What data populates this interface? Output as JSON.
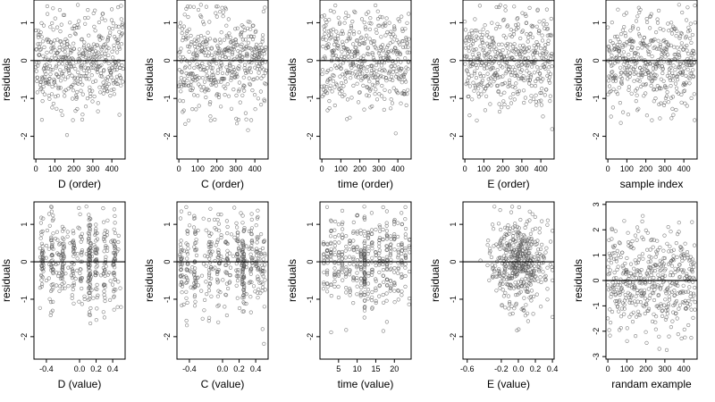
{
  "chart_data": [
    {
      "type": "scatter",
      "xlabel": "D (order)",
      "ylabel": "residuals",
      "xticks": [
        0,
        100,
        200,
        300,
        400
      ],
      "xlim": [
        -10,
        470
      ],
      "yticks": [
        -2,
        -1,
        0,
        1
      ],
      "ylim": [
        -2.6,
        1.6
      ],
      "hline": 0,
      "n_points": 460,
      "seed": 11,
      "x_kind": "order"
    },
    {
      "type": "scatter",
      "xlabel": "C (order)",
      "ylabel": "residuals",
      "xticks": [
        0,
        100,
        200,
        300,
        400
      ],
      "xlim": [
        -10,
        470
      ],
      "yticks": [
        -2,
        -1,
        0,
        1
      ],
      "ylim": [
        -2.6,
        1.6
      ],
      "hline": 0,
      "n_points": 460,
      "seed": 23,
      "x_kind": "order"
    },
    {
      "type": "scatter",
      "xlabel": "time (order)",
      "ylabel": "residuals",
      "xticks": [
        0,
        100,
        200,
        300,
        400
      ],
      "xlim": [
        -10,
        470
      ],
      "yticks": [
        -2,
        -1,
        0,
        1
      ],
      "ylim": [
        -2.6,
        1.6
      ],
      "hline": 0,
      "n_points": 460,
      "seed": 37,
      "x_kind": "order"
    },
    {
      "type": "scatter",
      "xlabel": "E (order)",
      "ylabel": "residuals",
      "xticks": [
        0,
        100,
        200,
        300,
        400
      ],
      "xlim": [
        -10,
        470
      ],
      "yticks": [
        -2,
        -1,
        0,
        1
      ],
      "ylim": [
        -2.6,
        1.6
      ],
      "hline": 0,
      "n_points": 460,
      "seed": 41,
      "x_kind": "order"
    },
    {
      "type": "scatter",
      "xlabel": "sample index",
      "ylabel": "residuals",
      "xticks": [
        0,
        100,
        200,
        300,
        400
      ],
      "xlim": [
        -10,
        470
      ],
      "yticks": [
        -2,
        -1,
        0,
        1
      ],
      "ylim": [
        -2.6,
        1.6
      ],
      "hline": 0,
      "n_points": 460,
      "seed": 53,
      "x_kind": "order"
    },
    {
      "type": "scatter",
      "xlabel": "D (value)",
      "ylabel": "residuals",
      "xticks": [
        -0.4,
        -0.2,
        0,
        0.2,
        0.4
      ],
      "xtick_labels": [
        "-0.4",
        "0.0",
        "0.2",
        "0.4"
      ],
      "xtick_values": [
        -0.4,
        0,
        0.2,
        0.4
      ],
      "xlim": [
        -0.55,
        0.55
      ],
      "yticks": [
        -2,
        -1,
        0,
        1
      ],
      "ylim": [
        -2.6,
        1.6
      ],
      "hline": 0,
      "n_points": 460,
      "seed": 61,
      "x_kind": "value_clustered",
      "clusters": [
        -0.45,
        -0.33,
        -0.2,
        -0.08,
        0.02,
        0.12,
        0.2,
        0.3,
        0.42
      ],
      "dense_cluster": 0.12
    },
    {
      "type": "scatter",
      "xlabel": "C (value)",
      "ylabel": "residuals",
      "xtick_labels": [
        "-0.4",
        "0.0",
        "0.2",
        "0.4"
      ],
      "xtick_values": [
        -0.4,
        0,
        0.2,
        0.4
      ],
      "xlim": [
        -0.55,
        0.55
      ],
      "yticks": [
        -2,
        -1,
        0,
        1
      ],
      "ylim": [
        -2.6,
        1.6
      ],
      "hline": 0,
      "n_points": 460,
      "seed": 71,
      "x_kind": "value_clustered",
      "clusters": [
        -0.5,
        -0.43,
        -0.33,
        -0.15,
        -0.05,
        0.05,
        0.18,
        0.25,
        0.35,
        0.42,
        0.5
      ],
      "dense_cluster": 0.25
    },
    {
      "type": "scatter",
      "xlabel": "time (value)",
      "ylabel": "residuals",
      "xtick_labels": [
        "5",
        "10",
        "15",
        "20"
      ],
      "xtick_values": [
        5,
        10,
        15,
        20
      ],
      "xlim": [
        0,
        24.5
      ],
      "yticks": [
        -2,
        -1,
        0,
        1
      ],
      "ylim": [
        -2.6,
        1.6
      ],
      "hline": 0,
      "n_points": 460,
      "seed": 83,
      "x_kind": "value_grid",
      "grid_min": 1,
      "grid_max": 24,
      "dense_cluster": 12
    },
    {
      "type": "scatter",
      "xlabel": "E (value)",
      "ylabel": "residuals",
      "xtick_labels": [
        "-0.6",
        "-0.2",
        "0.0",
        "0.2",
        "0.4"
      ],
      "xtick_values": [
        -0.6,
        -0.2,
        0,
        0.2,
        0.4
      ],
      "xlim": [
        -0.65,
        0.42
      ],
      "yticks": [
        -2,
        -1,
        0,
        1
      ],
      "ylim": [
        -2.6,
        1.6
      ],
      "hline": 0,
      "n_points": 460,
      "seed": 97,
      "x_kind": "value_centered"
    },
    {
      "type": "scatter",
      "xlabel": "randam example",
      "ylabel": "residuals",
      "xtick_labels": [
        "0",
        "100",
        "200",
        "300",
        "400"
      ],
      "xtick_values": [
        0,
        100,
        200,
        300,
        400
      ],
      "xlim": [
        -10,
        470
      ],
      "yticks": [
        -3,
        -2,
        -1,
        0,
        1,
        2,
        3
      ],
      "ylim": [
        -3.1,
        3.1
      ],
      "hline": 0,
      "n_points": 460,
      "seed": 101,
      "x_kind": "order",
      "sd": 1.0
    }
  ]
}
